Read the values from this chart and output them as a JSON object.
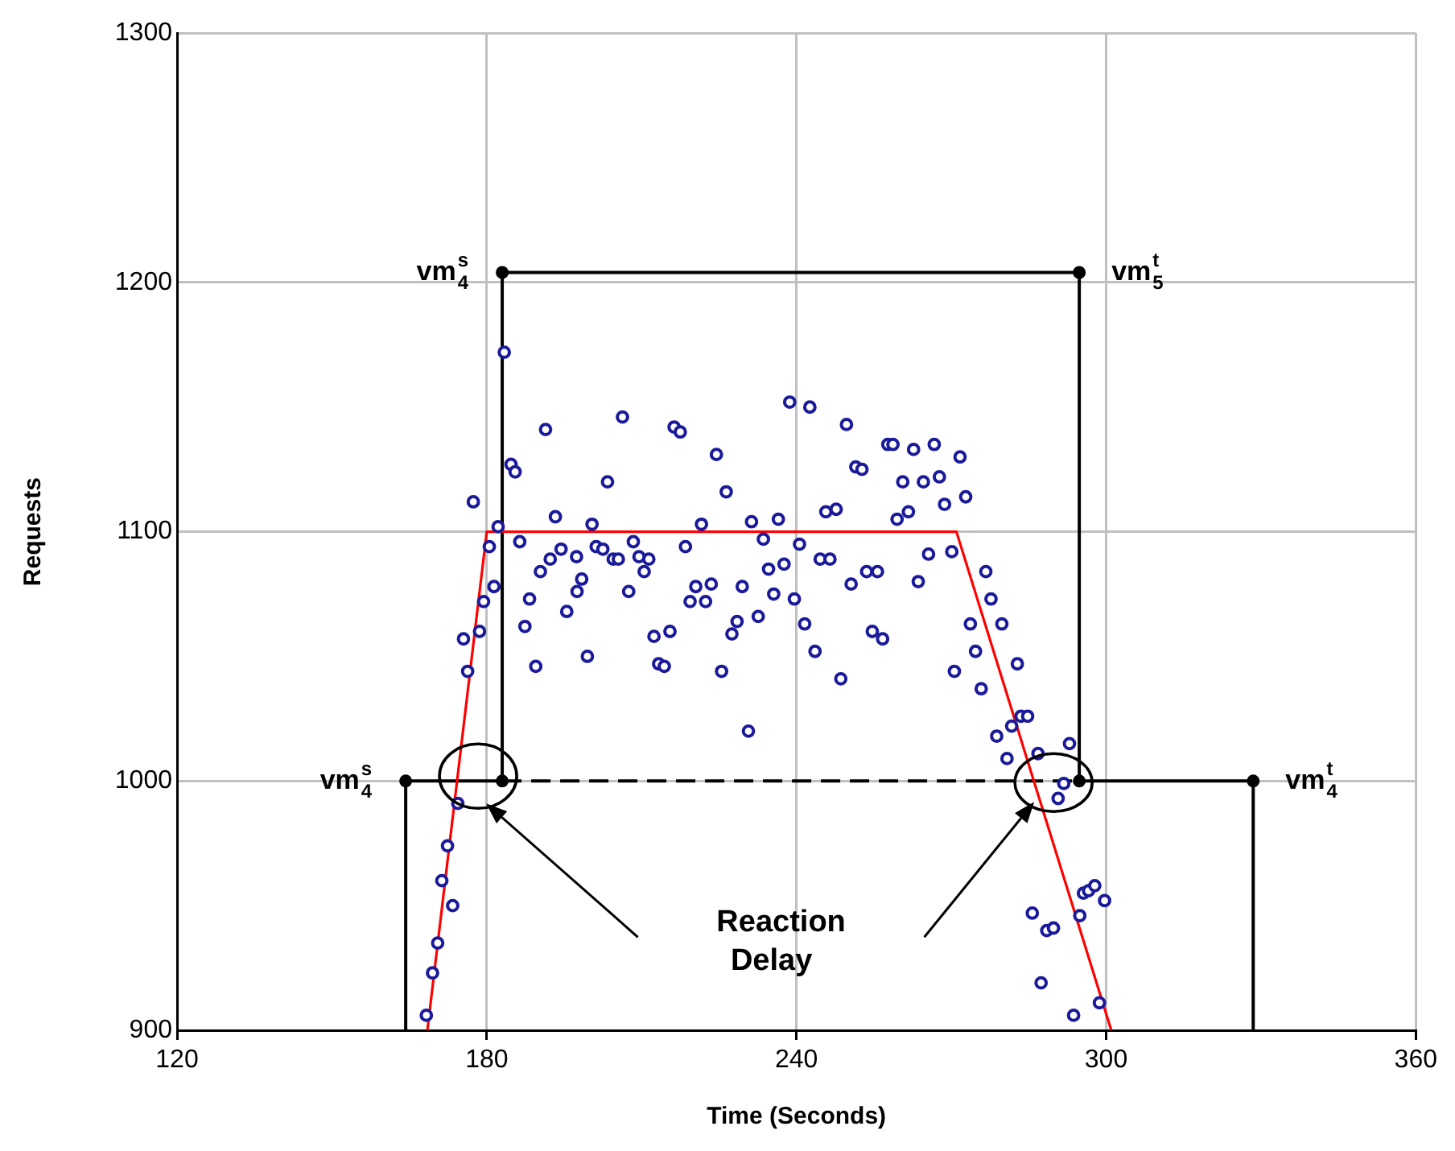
{
  "chart_data": {
    "type": "scatter",
    "xlabel": "Time (Seconds)",
    "ylabel": "Requests",
    "xlim": [
      120,
      360
    ],
    "xticks": [
      120,
      180,
      240,
      300,
      360
    ],
    "ylim": [
      900,
      1300
    ],
    "yticks": [
      900,
      1000,
      1100,
      1200,
      1300
    ],
    "grid": true,
    "legend": false,
    "series": [
      {
        "type": "scatter",
        "color": "#1a1a9a",
        "marker": "circle",
        "x": [
          168.3,
          169.5,
          170.5,
          171.3,
          172.4,
          173.4,
          174.4,
          175.5,
          176.3,
          177.4,
          178.6,
          179.4,
          180.5,
          181.4,
          182.2,
          183.4,
          184.7,
          185.5,
          186.4,
          187.4,
          188.3,
          189.5,
          190.4,
          191.4,
          192.3,
          193.3,
          194.4,
          195.5,
          197.4,
          197.5,
          198.4,
          199.5,
          200.4,
          201.2,
          202.5,
          203.4,
          204.5,
          205.5,
          206.3,
          207.5,
          208.4,
          209.5,
          210.5,
          211.4,
          212.4,
          213.3,
          214.4,
          215.5,
          216.3,
          217.5,
          218.5,
          219.4,
          220.5,
          221.6,
          222.4,
          223.5,
          224.5,
          225.5,
          226.4,
          227.5,
          228.5,
          229.5,
          230.7,
          231.3,
          232.6,
          233.6,
          234.6,
          235.6,
          236.5,
          237.6,
          238.7,
          239.6,
          240.6,
          241.6,
          242.6,
          243.6,
          244.6,
          245.7,
          246.5,
          247.7,
          248.6,
          249.7,
          250.6,
          251.5,
          252.7,
          253.6,
          254.7,
          255.7,
          256.7,
          257.7,
          258.7,
          259.5,
          260.6,
          261.7,
          262.7,
          263.6,
          264.6,
          265.6,
          266.7,
          267.7,
          268.7,
          270.1,
          270.6,
          271.7,
          272.8,
          273.7,
          274.7,
          275.8,
          276.7,
          277.7,
          278.8,
          279.8,
          280.8,
          281.7,
          282.8,
          283.5,
          284.8,
          285.7,
          286.8,
          287.4,
          288.5,
          289.8,
          290.7,
          291.8,
          292.9,
          293.7,
          294.9,
          295.6,
          296.6,
          297.8,
          298.7,
          299.7
        ],
        "values": [
          906,
          923,
          935,
          960,
          974,
          950,
          991,
          1057,
          1044,
          1112,
          1060,
          1072,
          1094,
          1078,
          1102,
          1172,
          1127,
          1124,
          1096,
          1062,
          1073,
          1046,
          1084,
          1141,
          1089,
          1106,
          1093,
          1068,
          1090,
          1076,
          1081,
          1050,
          1103,
          1094,
          1093,
          1120,
          1089,
          1089,
          1146,
          1076,
          1096,
          1090,
          1084,
          1089,
          1058,
          1047,
          1046,
          1060,
          1142,
          1140,
          1094,
          1072,
          1078,
          1103,
          1072,
          1079,
          1131,
          1044,
          1116,
          1059,
          1064,
          1078,
          1020,
          1104,
          1066,
          1097,
          1085,
          1075,
          1105,
          1087,
          1152,
          1073,
          1095,
          1063,
          1150,
          1052,
          1089,
          1108,
          1089,
          1109,
          1041,
          1143,
          1079,
          1126,
          1125,
          1084,
          1060,
          1084,
          1057,
          1135,
          1135,
          1105,
          1120,
          1108,
          1133,
          1080,
          1120,
          1091,
          1135,
          1122,
          1111,
          1092,
          1044,
          1130,
          1114,
          1063,
          1052,
          1037,
          1084,
          1073,
          1018,
          1063,
          1009,
          1022,
          1047,
          1026,
          1026,
          947,
          1011,
          919,
          940,
          941,
          993,
          999,
          1015,
          906,
          946,
          955,
          956,
          958,
          911,
          952
        ]
      },
      {
        "type": "line",
        "color": "#ff0000",
        "marker": "none",
        "x": [
          168.5,
          180,
          271,
          301
        ],
        "values": [
          900,
          1100,
          1100,
          900
        ]
      },
      {
        "type": "line",
        "color": "#000000",
        "marker": "none",
        "x": [
          164.3,
          164.3,
          183,
          183,
          294.8,
          294.8,
          328.5,
          328.5
        ],
        "values": [
          900,
          1000,
          1000,
          1204,
          1204,
          1000,
          1000,
          900
        ]
      },
      {
        "type": "line",
        "color": "#000000",
        "marker": "none",
        "line_style": "dashed",
        "x": [
          183,
          294.8
        ],
        "values": [
          1000,
          1000
        ]
      },
      {
        "type": "scatter",
        "color": "#000000",
        "marker": "circle",
        "x": [
          164.3,
          183,
          183,
          294.8,
          294.8,
          328.5
        ],
        "values": [
          1000,
          1000,
          1204,
          1204,
          1000,
          1000
        ]
      }
    ],
    "annotations": [
      {
        "text": "vm$_{4}$$^{s}$",
        "x": 164.3,
        "y": 1000
      },
      {
        "text": "vm$_{4}$$^{s}$",
        "x": 183,
        "y": 1204
      },
      {
        "text": "vm$_{5}$$^{t}$",
        "x": 294.8,
        "y": 1204
      },
      {
        "text": "vm$_{4}$$^{t}$",
        "x": 328.5,
        "y": 1000
      },
      "Reaction Delay"
    ]
  }
}
